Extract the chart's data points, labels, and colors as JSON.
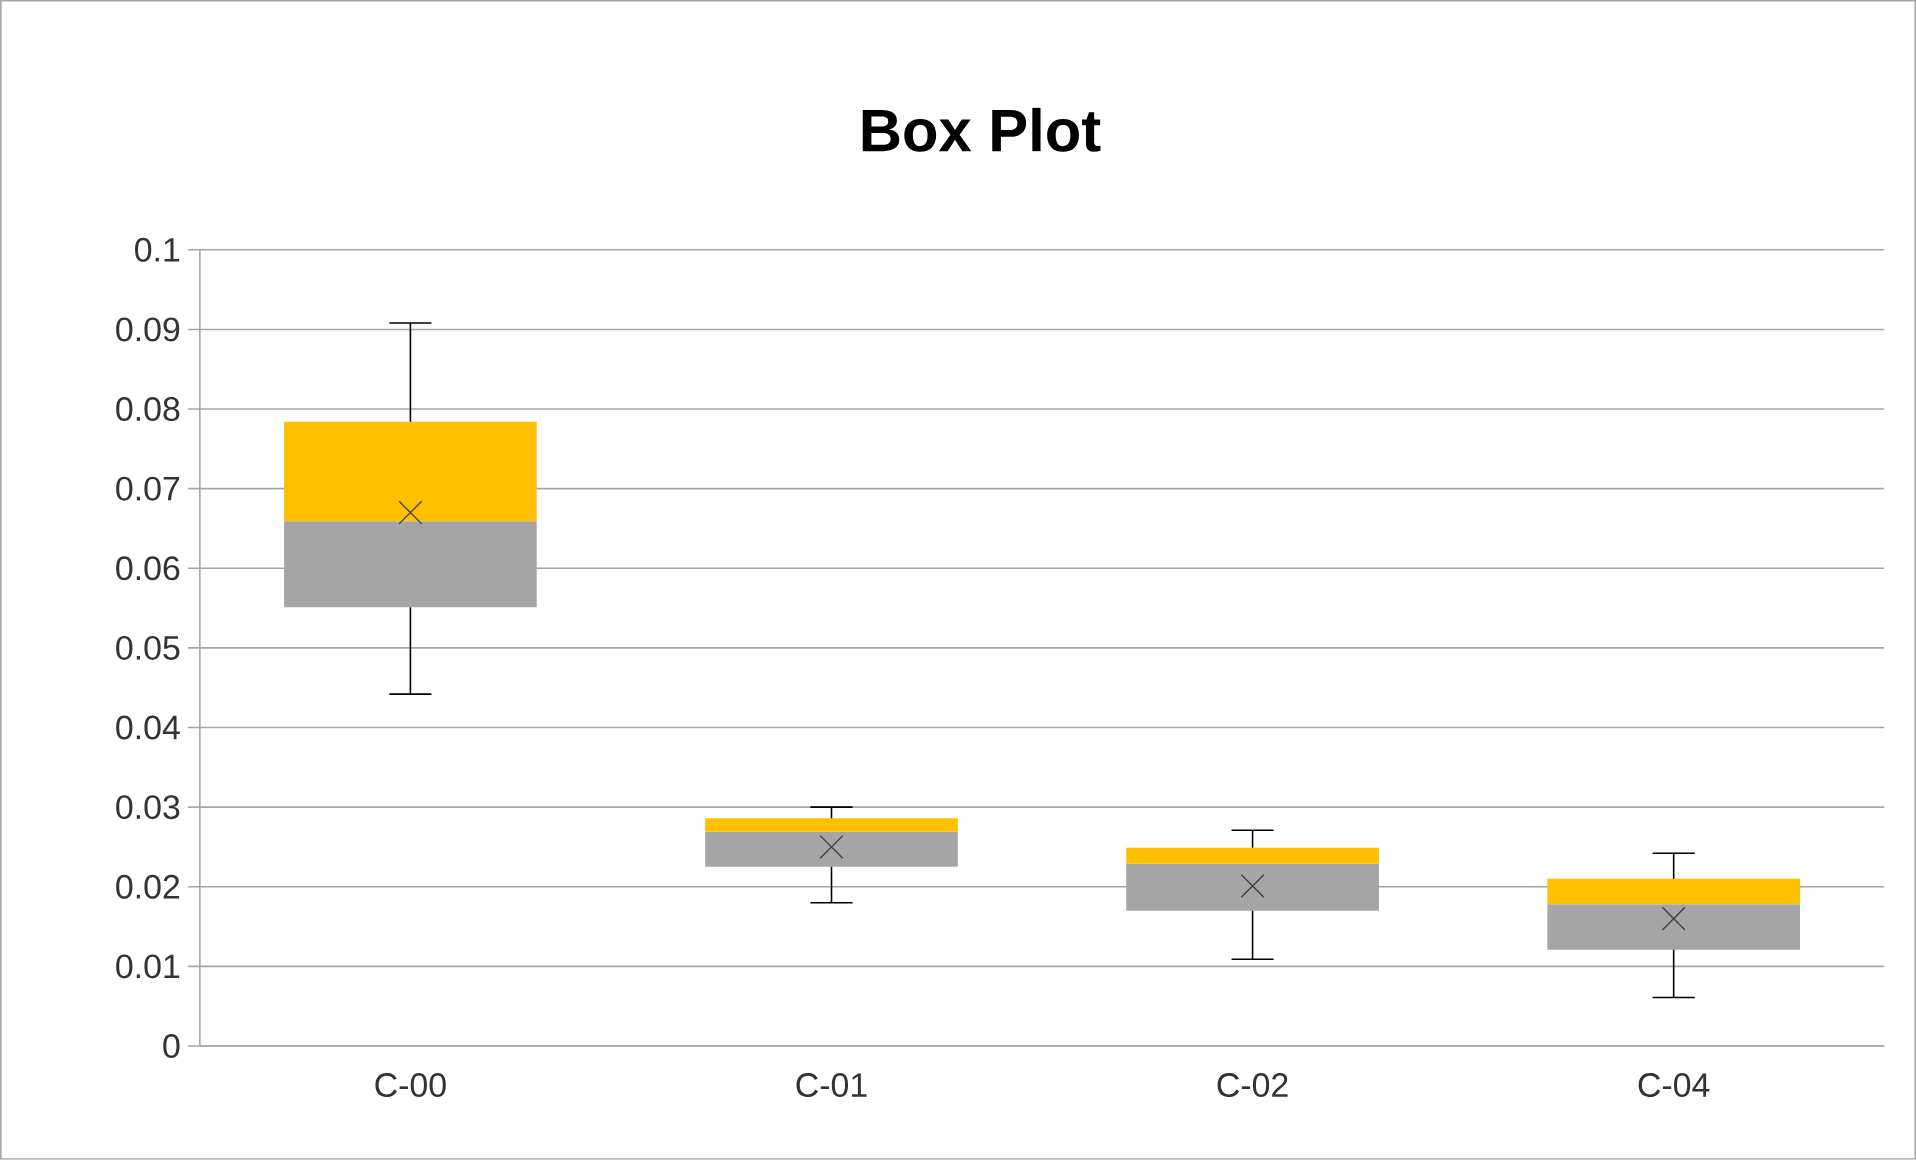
{
  "chart_data": {
    "type": "box",
    "title": "Box Plot",
    "categories": [
      "C-00",
      "C-01",
      "C-02",
      "C-04"
    ],
    "boxes": [
      {
        "low": 0.0442,
        "q1": 0.0551,
        "median": 0.0659,
        "q3": 0.0784,
        "high": 0.0908,
        "mean": 0.067
      },
      {
        "low": 0.018,
        "q1": 0.0225,
        "median": 0.0269,
        "q3": 0.0286,
        "high": 0.03,
        "mean": 0.025
      },
      {
        "low": 0.0109,
        "q1": 0.017,
        "median": 0.0229,
        "q3": 0.0249,
        "high": 0.0271,
        "mean": 0.0201
      },
      {
        "low": 0.0061,
        "q1": 0.0121,
        "median": 0.0178,
        "q3": 0.021,
        "high": 0.0242,
        "mean": 0.016
      }
    ],
    "colors": [
      [
        "#a5a5a5",
        "#ffc000"
      ],
      [
        "#a5a5a5",
        "#ffc000"
      ],
      [
        "#a5a5a5",
        "#ffc000"
      ],
      [
        "#a5a5a5",
        "#ffc000"
      ]
    ],
    "ylim": [
      0,
      0.1
    ],
    "yticks": [
      0,
      0.01,
      0.02,
      0.03,
      0.04,
      0.05,
      0.06,
      0.07,
      0.08,
      0.09,
      0.1
    ],
    "grid": "y",
    "marker": "cross"
  }
}
